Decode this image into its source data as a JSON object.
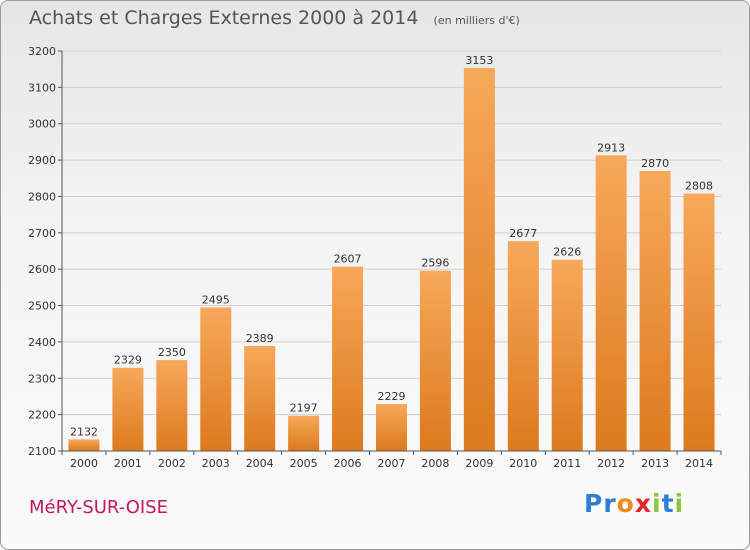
{
  "chart_data": {
    "type": "bar",
    "title": "Achats et Charges Externes 2000 à 2014",
    "subtitle": "(en milliers d'€)",
    "categories": [
      "2000",
      "2001",
      "2002",
      "2003",
      "2004",
      "2005",
      "2006",
      "2007",
      "2008",
      "2009",
      "2010",
      "2011",
      "2012",
      "2013",
      "2014"
    ],
    "values": [
      2132,
      2329,
      2350,
      2495,
      2389,
      2197,
      2607,
      2229,
      2596,
      3153,
      2677,
      2626,
      2913,
      2870,
      2808
    ],
    "ylim": [
      2100,
      3200
    ],
    "yticks": [
      2100,
      2200,
      2300,
      2400,
      2500,
      2600,
      2700,
      2800,
      2900,
      3000,
      3100,
      3200
    ],
    "grid": true,
    "bar_color_light": "#f7a85a",
    "bar_color_dark": "#dc7a1e"
  },
  "footer": {
    "city": "MéRY-SUR-OISE",
    "city_color": "#c2185b",
    "brand_letters": [
      {
        "ch": "P",
        "color": "#2e7fd4"
      },
      {
        "ch": "r",
        "color": "#2e7fd4"
      },
      {
        "ch": "o",
        "color": "#f08a1c"
      },
      {
        "ch": "x",
        "color": "#e3252c"
      },
      {
        "ch": "i",
        "color": "#8cc63f"
      },
      {
        "ch": "t",
        "color": "#2e7fd4"
      },
      {
        "ch": "i",
        "color": "#8cc63f"
      }
    ]
  }
}
